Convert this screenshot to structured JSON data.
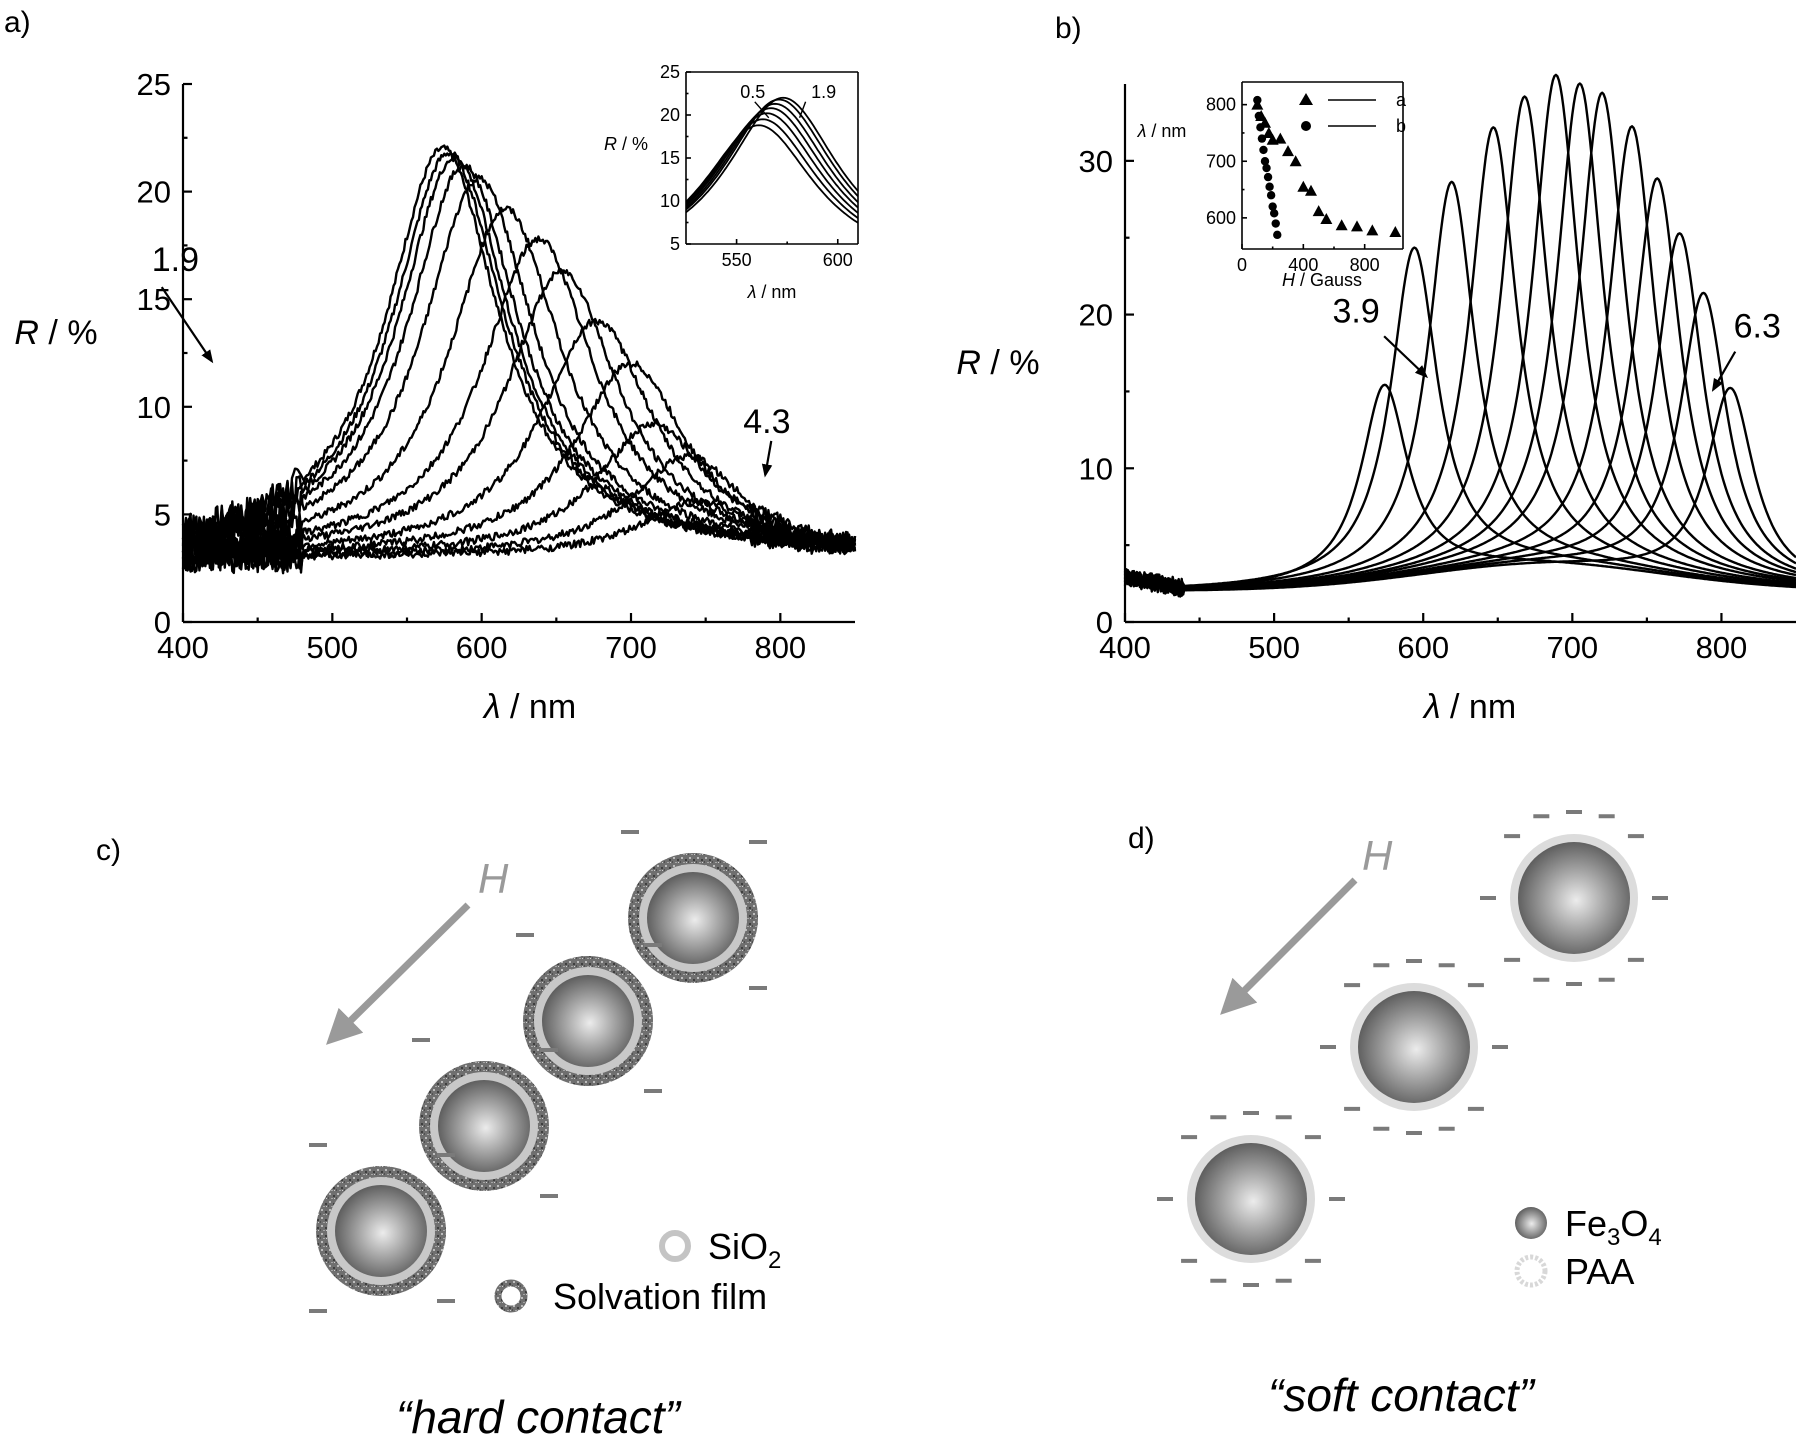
{
  "panels": {
    "a": "a)",
    "b": "b)",
    "c": "c)",
    "d": "d)"
  },
  "chart_data": [
    {
      "id": "a",
      "type": "line",
      "xlabel_sym": "λ",
      "xlabel_unit": " / nm",
      "ylabel_sym": "R",
      "ylabel_unit": " / %",
      "xlim": [
        400,
        850
      ],
      "ylim": [
        0,
        25
      ],
      "xticks": [
        400,
        500,
        600,
        700,
        800
      ],
      "yticks": [
        0,
        5,
        10,
        15,
        20,
        25
      ],
      "baseline": 3,
      "width": 46,
      "peaks": [
        [
          574,
          22
        ],
        [
          578,
          21.8
        ],
        [
          582,
          21.6
        ],
        [
          588,
          21.2
        ],
        [
          598,
          20.6
        ],
        [
          616,
          19.2
        ],
        [
          638,
          17.8
        ],
        [
          654,
          16.3
        ],
        [
          677,
          14
        ],
        [
          700,
          12
        ],
        [
          715,
          9.2
        ],
        [
          738,
          7.7
        ],
        [
          745,
          5.6
        ]
      ],
      "annotations": [
        {
          "text": "1.9",
          "x": 513,
          "y": 9.8
        },
        {
          "text": "4.3",
          "x": 810,
          "y": 7.3
        }
      ],
      "inset": {
        "xlabel_sym": "λ",
        "xlabel_unit": " / nm",
        "ylabel_sym": "R",
        "ylabel_unit": " / %",
        "xlim": [
          525,
          610
        ],
        "ylim": [
          5,
          25
        ],
        "xticks": [
          550,
          600
        ],
        "yticks": [
          5,
          10,
          15,
          20,
          25
        ],
        "baseline": 2,
        "width": 34,
        "peaks": [
          [
            561,
            18.8
          ],
          [
            563,
            19.5
          ],
          [
            565,
            20.2
          ],
          [
            567,
            20.8
          ],
          [
            569,
            21.3
          ],
          [
            571,
            21.8
          ],
          [
            573,
            22
          ]
        ],
        "annotations": [
          {
            "text": "0.5",
            "x": 558,
            "y": 22
          },
          {
            "text": "1.9",
            "x": 593,
            "y": 22
          }
        ]
      }
    },
    {
      "id": "b",
      "type": "line",
      "xlabel_sym": "λ",
      "xlabel_unit": " / nm",
      "ylabel_sym": "R",
      "ylabel_unit": " / %",
      "xlim": [
        400,
        850
      ],
      "ylim": [
        0,
        35
      ],
      "xticks": [
        400,
        500,
        600,
        700,
        800
      ],
      "yticks": [
        0,
        10,
        20,
        30
      ],
      "baseline": 2,
      "width": 19,
      "peaks": [
        [
          574,
          14.7
        ],
        [
          594,
          23.4
        ],
        [
          619,
          27.4
        ],
        [
          647,
          30.7
        ],
        [
          668,
          32.6
        ],
        [
          689,
          34
        ],
        [
          705,
          33.5
        ],
        [
          720,
          33
        ],
        [
          740,
          31
        ],
        [
          757,
          27.8
        ],
        [
          772,
          24.4
        ],
        [
          788,
          20.7
        ],
        [
          806,
          14.7
        ]
      ],
      "annotations": [
        {
          "text": "3.9",
          "x": 555,
          "y": 19.5
        },
        {
          "text": "6.3",
          "x": 824,
          "y": 18.5
        }
      ],
      "inset": {
        "xlabel_sym": "H",
        "xlabel_unit": " / Gauss",
        "ylabel_sym": "λ",
        "ylabel_unit": " / nm",
        "xlim": [
          0,
          1050
        ],
        "ylim": [
          545,
          840
        ],
        "xticks": [
          0,
          400,
          800
        ],
        "yticks": [
          600,
          700,
          800
        ],
        "series": [
          {
            "name": "a",
            "marker": "triangle",
            "points": [
              [
                100,
                800
              ],
              [
                125,
                780
              ],
              [
                150,
                768
              ],
              [
                175,
                750
              ],
              [
                200,
                738
              ],
              [
                250,
                740
              ],
              [
                300,
                718
              ],
              [
                350,
                700
              ],
              [
                400,
                655
              ],
              [
                450,
                648
              ],
              [
                500,
                612
              ],
              [
                550,
                598
              ],
              [
                650,
                587
              ],
              [
                750,
                585
              ],
              [
                850,
                578
              ],
              [
                1000,
                575
              ]
            ]
          },
          {
            "name": "b",
            "marker": "circle",
            "points": [
              [
                100,
                808
              ],
              [
                110,
                780
              ],
              [
                120,
                760
              ],
              [
                130,
                740
              ],
              [
                140,
                720
              ],
              [
                150,
                700
              ],
              [
                160,
                688
              ],
              [
                170,
                672
              ],
              [
                180,
                655
              ],
              [
                190,
                640
              ],
              [
                200,
                620
              ],
              [
                210,
                608
              ],
              [
                220,
                590
              ],
              [
                230,
                570
              ]
            ]
          }
        ]
      }
    }
  ],
  "diagram_c": {
    "field_label": "H",
    "legend": [
      {
        "icon": "sio2-ring-icon",
        "text": "SiO",
        "sub": "2"
      },
      {
        "icon": "solvation-ring-icon",
        "text": "Solvation film",
        "sub": ""
      }
    ],
    "caption": "“hard contact”"
  },
  "diagram_d": {
    "field_label": "H",
    "legend": [
      {
        "icon": "fe3o4-ball-icon",
        "parts": [
          "Fe",
          "3",
          "O",
          "4"
        ]
      },
      {
        "icon": "paa-ring-icon",
        "text": "PAA"
      }
    ],
    "caption": "“soft contact”"
  },
  "colors": {
    "line": "#000000",
    "arrow_gray": "#9a9a9a",
    "silica": "#c8c8c8",
    "paa": "#d8d8d8",
    "dash": "#7a7a7a"
  }
}
